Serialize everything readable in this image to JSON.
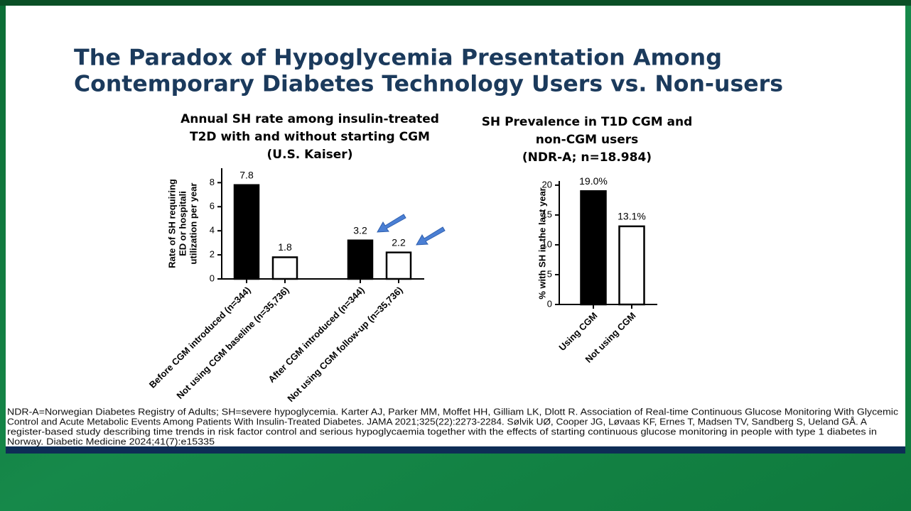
{
  "title": [
    "The Paradox of Hypoglycemia Presentation Among",
    "Contemporary Diabetes Technology Users vs. Non-users"
  ],
  "chart_data": [
    {
      "type": "bar",
      "title": [
        "Annual SH rate among insulin-treated",
        "T2D with and without starting CGM",
        "(U.S. Kaiser)"
      ],
      "y_label": [
        "Rate of SH requiring",
        "ED or hospitali",
        "utilization per year"
      ],
      "categories": [
        "Before CGM introduced (n=344)",
        "Not using CGM baseline (n=35,736)",
        "After CGM introduced (n=344)",
        "Not using CGM follow-up (n=35,736)"
      ],
      "values": [
        7.8,
        1.8,
        3.2,
        2.2
      ],
      "colors": [
        "#000000",
        "#ffffff",
        "#000000",
        "#ffffff"
      ],
      "ylim": [
        0,
        9.2
      ],
      "yticks": [
        0,
        2,
        4,
        6,
        8
      ]
    },
    {
      "type": "bar",
      "title": [
        "SH Prevalence in T1D CGM and",
        "non-CGM users",
        "(NDR-A; n=18.984)"
      ],
      "y_label": [
        "% with SH in the last year"
      ],
      "categories": [
        "Using CGM",
        "Not using CGM"
      ],
      "values": [
        19.0,
        13.1
      ],
      "value_labels": [
        "19.0%",
        "13.1%"
      ],
      "colors": [
        "#000000",
        "#ffffff"
      ],
      "ylim": [
        0,
        20.7
      ],
      "yticks": [
        0,
        5,
        10,
        15,
        20
      ]
    }
  ],
  "footnote": [
    "NDR-A=Norwegian Diabetes Registry of Adults; SH=severe hypoglycemia. Karter AJ, Parker MM, Moffet HH, Gilliam LK, Dlott R. Association of Real-time Continuous Glucose Monitoring With Glycemic",
    "Control and Acute Metabolic Events Among Patients With Insulin-Treated Diabetes. JAMA 2021;325(22):2273-2284. Sølvik UØ, Cooper JG, Løvaas KF, Ernes T, Madsen TV, Sandberg S, Ueland GÅ. A",
    "register-based study describing time trends in risk factor control and serious hypoglycaemia together with the effects of starting continuous glucose monitoring in people with type 1 diabetes in",
    "Norway. Diabetic Medicine 2024;41(7):e15335"
  ]
}
